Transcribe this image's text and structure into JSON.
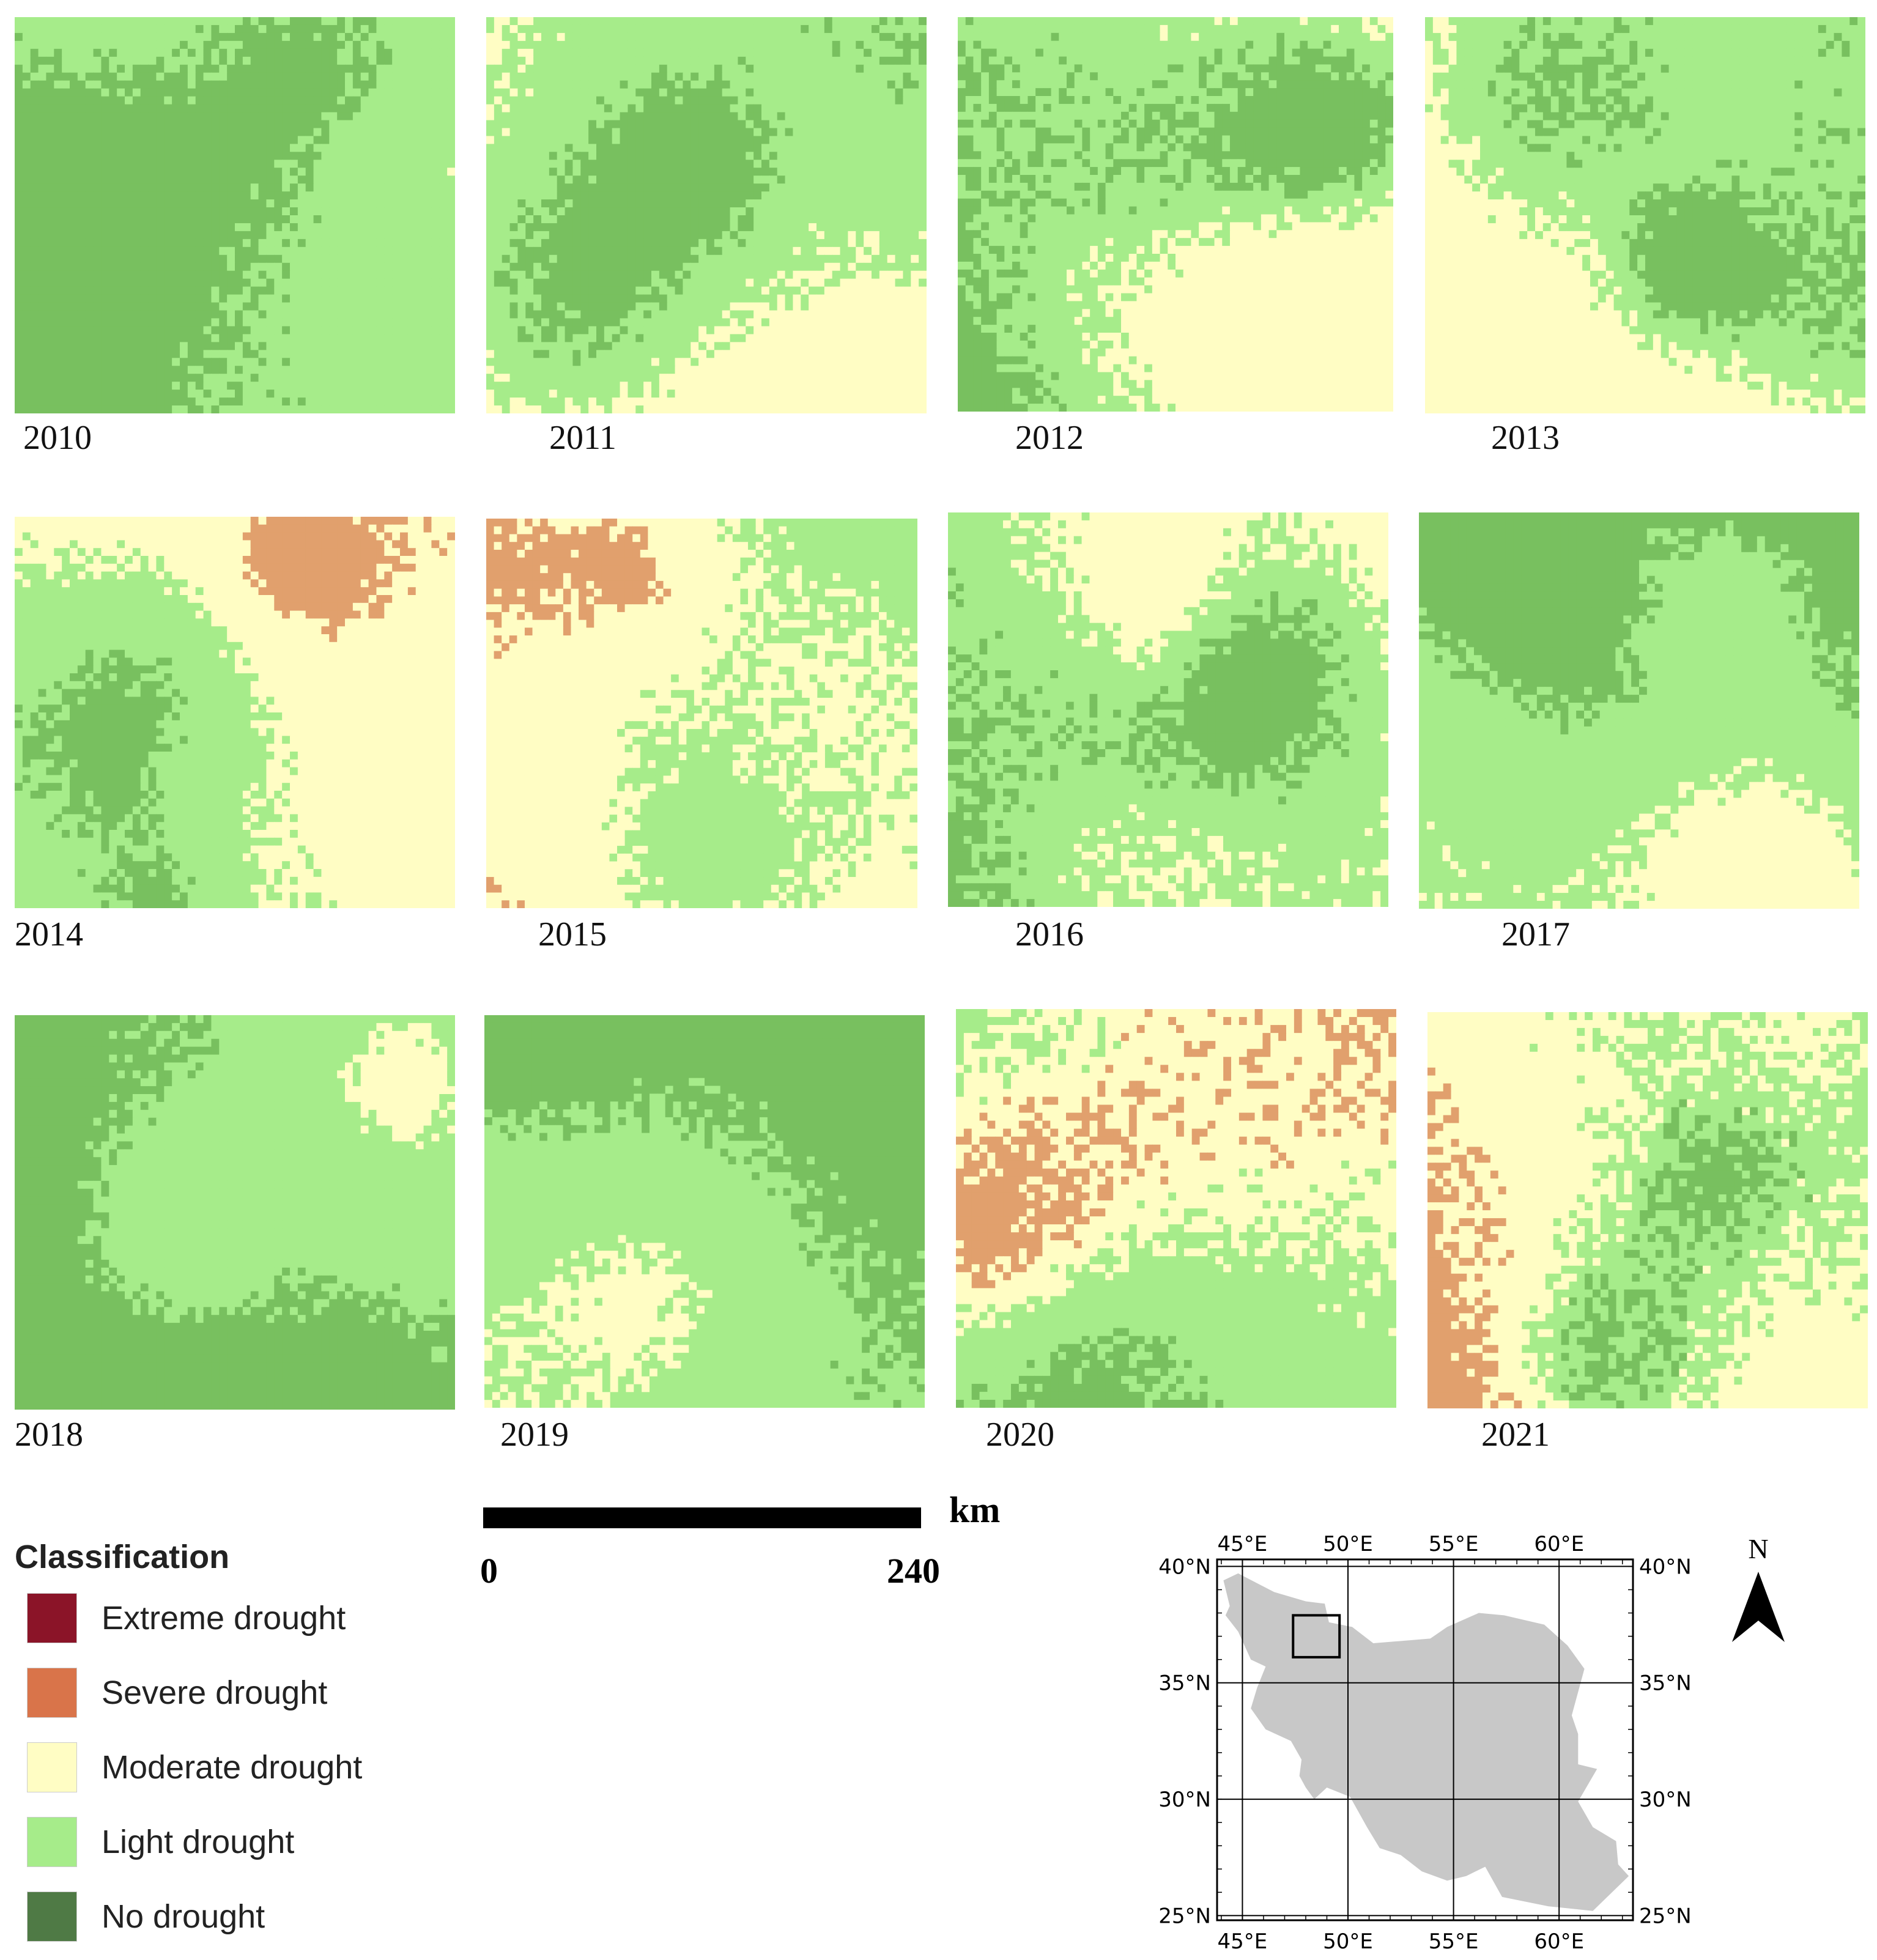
{
  "colors": {
    "extreme": "#8b1428",
    "severe": "#d9744a",
    "moderate": "#fffdc4",
    "light": "#a6ec8a",
    "none": "#78c05f",
    "severe_map": "#e1a06d"
  },
  "panels": [
    {
      "year": "2010",
      "light": 0.45,
      "none": 0.4,
      "moderate": 0.0,
      "severe": 0.0
    },
    {
      "year": "2011",
      "light": 0.55,
      "none": 0.25,
      "moderate": 0.2,
      "severe": 0.0
    },
    {
      "year": "2012",
      "light": 0.45,
      "none": 0.25,
      "moderate": 0.3,
      "severe": 0.0
    },
    {
      "year": "2013",
      "light": 0.5,
      "none": 0.2,
      "moderate": 0.3,
      "severe": 0.0
    },
    {
      "year": "2014",
      "light": 0.35,
      "none": 0.12,
      "moderate": 0.45,
      "severe": 0.08
    },
    {
      "year": "2015",
      "light": 0.35,
      "none": 0.0,
      "moderate": 0.57,
      "severe": 0.08
    },
    {
      "year": "2016",
      "light": 0.6,
      "none": 0.2,
      "moderate": 0.2,
      "severe": 0.0
    },
    {
      "year": "2017",
      "light": 0.55,
      "none": 0.3,
      "moderate": 0.15,
      "severe": 0.0
    },
    {
      "year": "2018",
      "light": 0.5,
      "none": 0.45,
      "moderate": 0.05,
      "severe": 0.0
    },
    {
      "year": "2019",
      "light": 0.5,
      "none": 0.4,
      "moderate": 0.1,
      "severe": 0.0
    },
    {
      "year": "2020",
      "light": 0.35,
      "none": 0.05,
      "moderate": 0.45,
      "severe": 0.15
    },
    {
      "year": "2021",
      "light": 0.35,
      "none": 0.1,
      "moderate": 0.48,
      "severe": 0.07
    }
  ],
  "legend": {
    "title": "Classification",
    "items": [
      {
        "label": "Extreme drought",
        "color": "#8b1428"
      },
      {
        "label": "Severe drought",
        "color": "#d9744a"
      },
      {
        "label": "Moderate drought",
        "color": "#fffdc4"
      },
      {
        "label": "Light drought",
        "color": "#a6ec8a"
      },
      {
        "label": "No drought",
        "color": "#4f7a45"
      }
    ]
  },
  "scale": {
    "unit": "km",
    "start": "0",
    "end": "240"
  },
  "locator": {
    "lon_labels": [
      "45°E",
      "50°E",
      "55°E",
      "60°E"
    ],
    "lat_labels": [
      "40°N",
      "35°N",
      "30°N",
      "25°N"
    ],
    "lon_range": [
      43.8,
      63.5
    ],
    "lat_range": [
      24.8,
      40.3
    ],
    "study_area": {
      "lon": [
        47.4,
        49.6
      ],
      "lat": [
        36.1,
        37.9
      ]
    }
  },
  "north_label": "N"
}
